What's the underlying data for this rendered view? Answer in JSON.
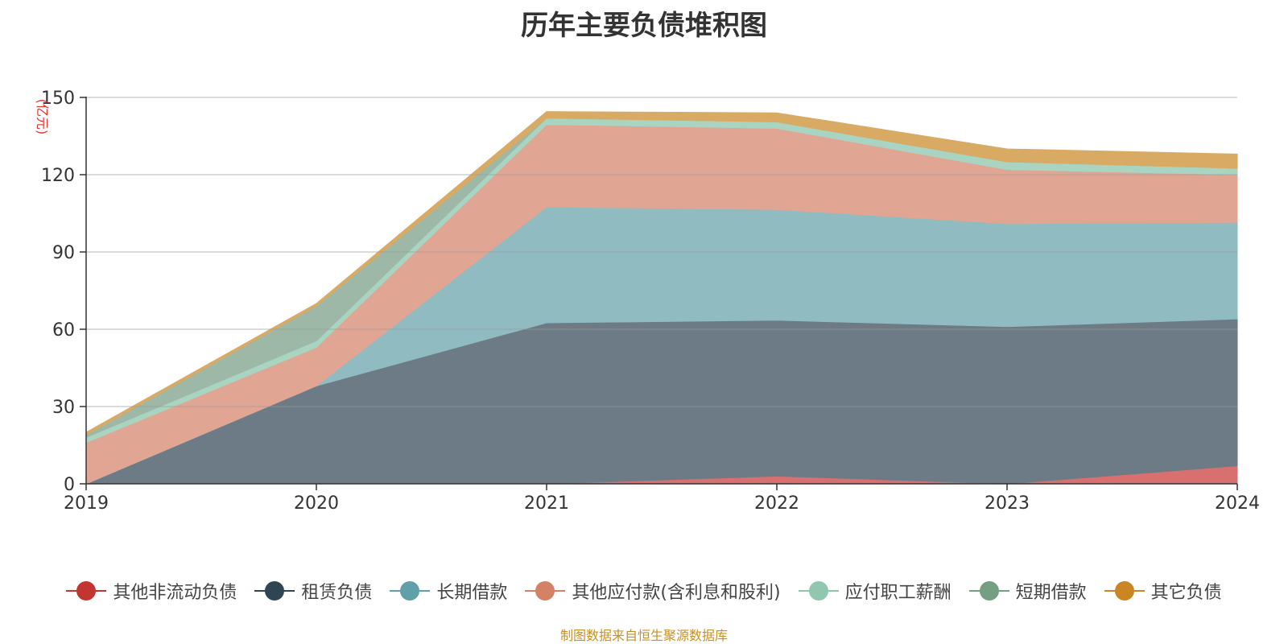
{
  "chart_data": {
    "type": "area",
    "stacked": true,
    "title": "历年主要负债堆积图",
    "unit_label": "(亿元)",
    "categories": [
      "2019",
      "2020",
      "2021",
      "2022",
      "2023",
      "2024"
    ],
    "ylim": [
      0,
      150
    ],
    "yticks": [
      0,
      30,
      60,
      90,
      120,
      150
    ],
    "grid": true,
    "legend_position": "bottom",
    "series": [
      {
        "name": "其他非流动负债",
        "color": "#c23531",
        "fill": "#d97070",
        "values": [
          0,
          0,
          0,
          3,
          0,
          7
        ]
      },
      {
        "name": "租赁负债",
        "color": "#2f4554",
        "fill": "#6d7b86",
        "values": [
          0,
          38,
          62.5,
          60.5,
          61,
          57
        ]
      },
      {
        "name": "长期借款",
        "color": "#61a0a8",
        "fill": "#90bbc1",
        "values": [
          0,
          0,
          45,
          43,
          40,
          37.5
        ]
      },
      {
        "name": "其他应付款(含利息和股利)",
        "color": "#d48265",
        "fill": "#e0a693",
        "values": [
          16,
          15,
          32,
          31.5,
          21,
          18.5
        ]
      },
      {
        "name": "应付职工薪酬",
        "color": "#91c7ae",
        "fill": "#a9d4c1",
        "values": [
          2,
          2.5,
          2.5,
          2.5,
          3,
          2.5
        ]
      },
      {
        "name": "短期借款",
        "color": "#749f83",
        "fill": "#9db8a6",
        "values": [
          1,
          13.5,
          0,
          0,
          0,
          0
        ]
      },
      {
        "name": "其它负债",
        "color": "#ca8622",
        "fill": "#d8aa64",
        "values": [
          1,
          1,
          2.5,
          3.5,
          5,
          5.5
        ]
      }
    ]
  },
  "source_note": "制图数据来自恒生聚源数据库",
  "source_note_color": "#c79023"
}
